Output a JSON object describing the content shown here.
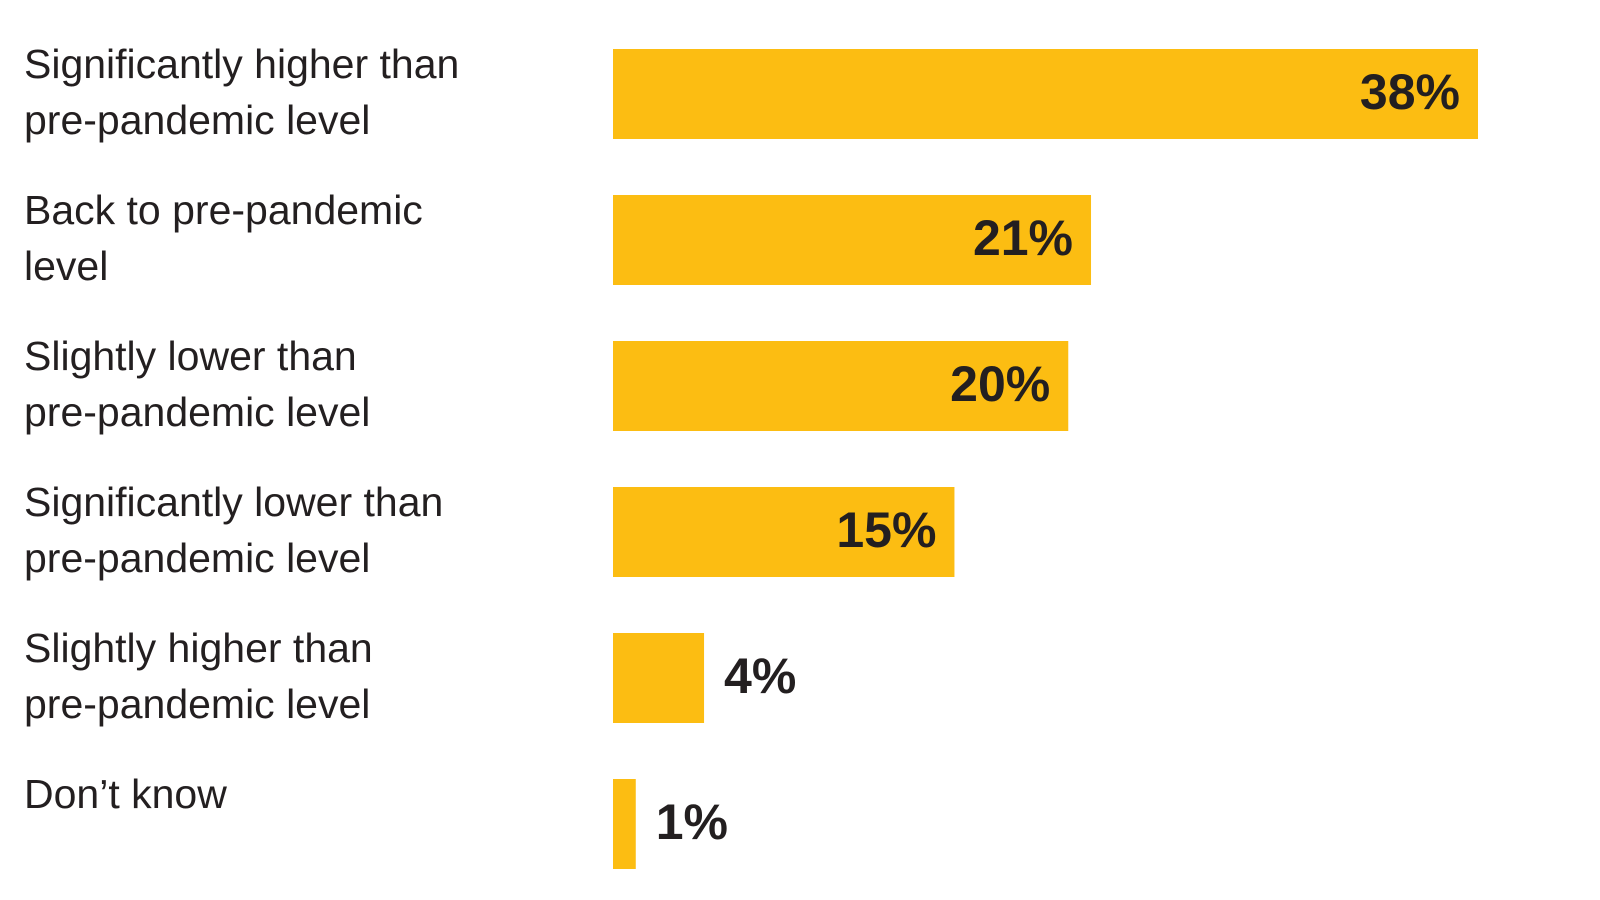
{
  "chart_data": {
    "type": "hbar",
    "categories": [
      [
        "Significantly higher than",
        "pre-pandemic level"
      ],
      [
        "Back to pre-pandemic",
        "level"
      ],
      [
        "Slightly lower than",
        "pre-pandemic level"
      ],
      [
        "Significantly lower than",
        "pre-pandemic level"
      ],
      [
        "Slightly higher than",
        "pre-pandemic level"
      ],
      [
        "Don’t know"
      ]
    ],
    "values": [
      38,
      21,
      20,
      15,
      4,
      1
    ],
    "value_labels": [
      "38%",
      "21%",
      "20%",
      "15%",
      "4%",
      "1%"
    ],
    "color": "#fcbd12"
  }
}
